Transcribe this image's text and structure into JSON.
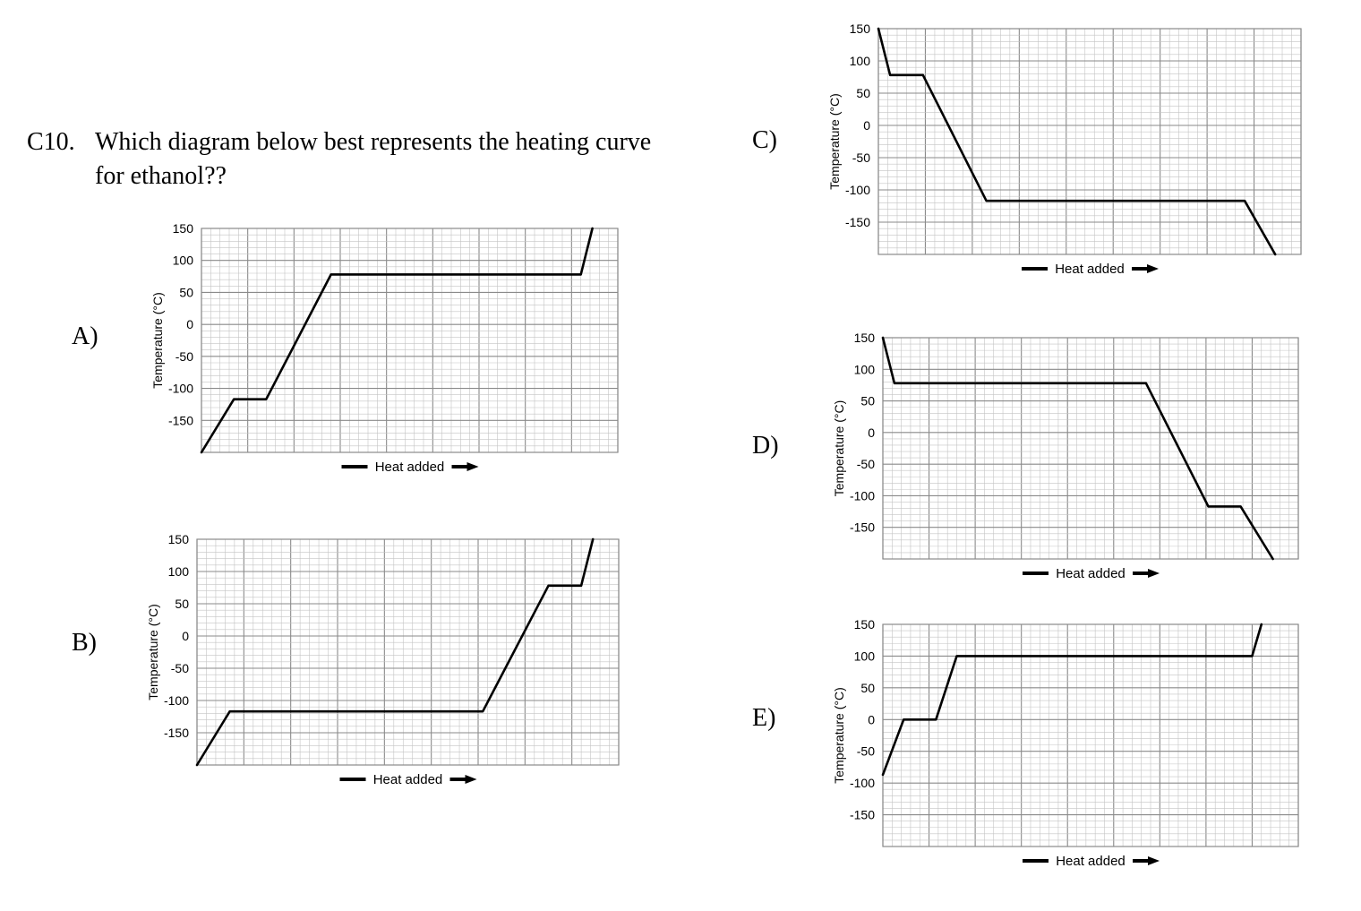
{
  "question": {
    "number": "C10.",
    "text": "Which diagram below best represents the heating curve for ethanol??"
  },
  "chart_data": [
    {
      "option": "A)",
      "type": "line",
      "ylabel": "Temperature (°C)",
      "xlabel": "Heat added",
      "yticks": [
        150,
        100,
        50,
        0,
        -50,
        -100,
        -150
      ],
      "ylim": [
        -200,
        150
      ],
      "xlim": [
        0,
        9
      ],
      "grid": true,
      "series": [
        {
          "x": [
            0,
            0.7,
            1.4,
            2.8,
            8.2,
            8.45
          ],
          "y": [
            -200,
            -117,
            -117,
            78,
            78,
            150
          ]
        }
      ]
    },
    {
      "option": "B)",
      "type": "line",
      "ylabel": "Temperature (°C)",
      "xlabel": "Heat added",
      "yticks": [
        150,
        100,
        50,
        0,
        -50,
        -100,
        -150
      ],
      "ylim": [
        -200,
        150
      ],
      "xlim": [
        0,
        9
      ],
      "grid": true,
      "series": [
        {
          "x": [
            0,
            0.7,
            6.1,
            7.5,
            8.2,
            8.45
          ],
          "y": [
            -200,
            -117,
            -117,
            78,
            78,
            150
          ]
        }
      ]
    },
    {
      "option": "C)",
      "type": "line",
      "ylabel": "Temperature (°C)",
      "xlabel": "Heat added",
      "yticks": [
        150,
        100,
        50,
        0,
        -50,
        -100,
        -150
      ],
      "ylim": [
        -200,
        150
      ],
      "xlim": [
        0,
        9
      ],
      "grid": true,
      "series": [
        {
          "x": [
            0,
            0.25,
            0.95,
            2.3,
            7.8,
            8.45
          ],
          "y": [
            150,
            78,
            78,
            -117,
            -117,
            -200
          ]
        }
      ]
    },
    {
      "option": "D)",
      "type": "line",
      "ylabel": "Temperature (°C)",
      "xlabel": "Heat added",
      "yticks": [
        150,
        100,
        50,
        0,
        -50,
        -100,
        -150
      ],
      "ylim": [
        -200,
        150
      ],
      "xlim": [
        0,
        9
      ],
      "grid": true,
      "series": [
        {
          "x": [
            0,
            0.25,
            5.7,
            7.05,
            7.75,
            8.45
          ],
          "y": [
            150,
            78,
            78,
            -117,
            -117,
            -200
          ]
        }
      ]
    },
    {
      "option": "E)",
      "type": "line",
      "ylabel": "Temperature (°C)",
      "xlabel": "Heat added",
      "yticks": [
        150,
        100,
        50,
        0,
        -50,
        -100,
        -150
      ],
      "ylim": [
        -200,
        150
      ],
      "xlim": [
        0,
        9
      ],
      "grid": true,
      "series": [
        {
          "x": [
            0,
            0.45,
            1.15,
            1.6,
            8.0,
            8.2
          ],
          "y": [
            -87,
            0,
            0,
            100,
            100,
            150
          ]
        }
      ]
    }
  ]
}
